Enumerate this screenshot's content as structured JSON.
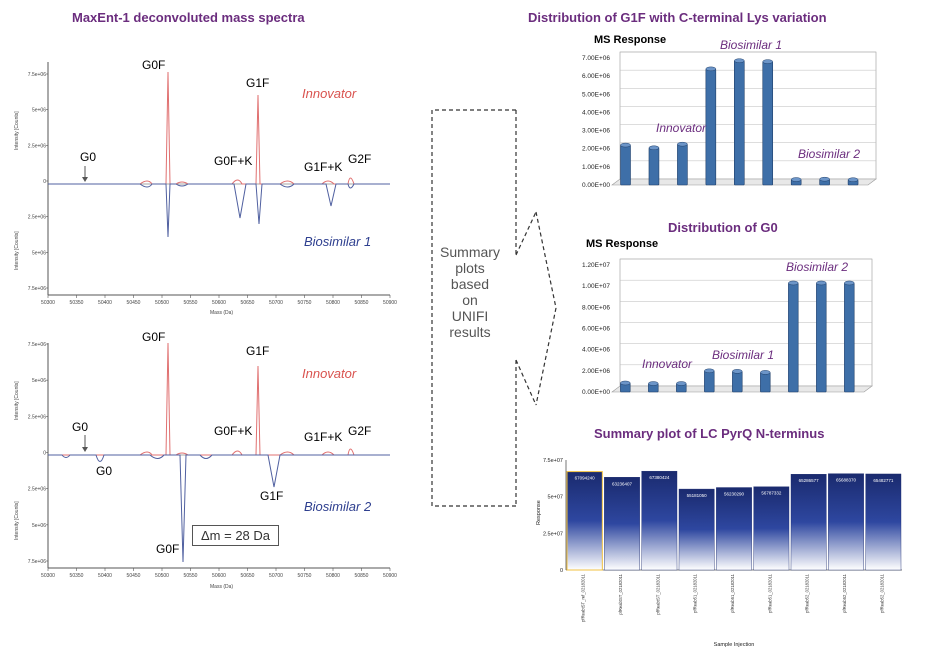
{
  "left": {
    "title": "MaxEnt-1 deconvoluted  mass spectra",
    "top_panel": {
      "upper_label": "Innovator",
      "lower_label": "Biosimilar 1",
      "peaks_upper": [
        "G0F",
        "G1F",
        "G0F+K",
        "G1F+K",
        "G2F"
      ],
      "g0_label": "G0",
      "yticks": [
        "7.5e+06",
        "5e+06",
        "2.5e+06",
        "0",
        "2.5e+06",
        "5e+06",
        "7.5e+06"
      ],
      "ylabel": "Intensity [Counts]",
      "xlabel": "Mass (Da)",
      "xticks": [
        "50300",
        "50350",
        "50400",
        "50450",
        "50500",
        "50550",
        "50600",
        "50650",
        "50700",
        "50750",
        "50800",
        "50850",
        "50900"
      ]
    },
    "bottom_panel": {
      "upper_label": "Innovator",
      "lower_label": "Biosimilar 2",
      "peaks_upper": [
        "G0F",
        "G1F",
        "G0F+K",
        "G1F+K",
        "G2F"
      ],
      "g0_upper": "G0",
      "g0_lower": "G0",
      "g1f_lower": "G1F",
      "g0f_lower": "G0F",
      "delta": "Δm = 28 Da",
      "yticks": [
        "7.5e+06",
        "5e+06",
        "2.5e+06",
        "0",
        "2.5e+06",
        "5e+06",
        "7.5e+06"
      ],
      "ylabel": "Intensity [Counts]",
      "xlabel": "Mass (Da)",
      "xticks": [
        "50300",
        "50350",
        "50400",
        "50450",
        "50500",
        "50550",
        "50600",
        "50650",
        "50700",
        "50750",
        "50800",
        "50850",
        "50900"
      ]
    }
  },
  "middle": {
    "summary": [
      "Summary",
      "plots",
      "based",
      "on",
      "UNIFI",
      "results"
    ]
  },
  "colors": {
    "title": "#6b2d7e",
    "innovator": "#e07070",
    "biosimilar": "#5060a0",
    "bar": "#3e6fa8"
  },
  "chart_data": [
    {
      "type": "bar",
      "title": "Distribution of G1F with C-terminal Lys variation",
      "ylabel": "MS Response",
      "yticks": [
        "0.00E+00",
        "1.00E+06",
        "2.00E+06",
        "3.00E+06",
        "4.00E+06",
        "5.00E+06",
        "6.00E+06",
        "7.00E+06"
      ],
      "ylim": [
        0,
        7000000
      ],
      "values": [
        2200000,
        2050000,
        2250000,
        6400000,
        6850000,
        6800000,
        300000,
        320000,
        290000
      ],
      "group_labels": [
        "Innovator",
        "Biosimilar 1",
        "Biosimilar 2"
      ]
    },
    {
      "type": "bar",
      "title": "Distribution of G0",
      "ylabel": "MS Response",
      "yticks": [
        "0.00E+00",
        "2.00E+06",
        "4.00E+06",
        "6.00E+06",
        "8.00E+06",
        "1.00E+07",
        "1.20E+07"
      ],
      "ylim": [
        0,
        12000000
      ],
      "values": [
        850000,
        800000,
        800000,
        2000000,
        1950000,
        1850000,
        10300000,
        10300000,
        10300000
      ],
      "group_labels": [
        "Innovator",
        "Biosimilar 1",
        "Biosimilar 2"
      ]
    },
    {
      "type": "bar",
      "title": "Summary plot of LC PyrQ N-terminus",
      "ylabel": "Response",
      "xlabel": "Sample Injection",
      "yticks": [
        "0",
        "2.5e+07",
        "5e+07",
        "7.5e+07"
      ],
      "ylim": [
        0,
        75000000
      ],
      "values": [
        67094240,
        63236407,
        67380424,
        55181050,
        56230290,
        56787332,
        65286577,
        65688370,
        65482771
      ],
      "data_labels": [
        "67094240",
        "63236407",
        "67380424",
        "55181050",
        "56230290",
        "56787332",
        "65286577",
        "65688370",
        "65482771"
      ],
      "categories": [
        "pfReabtST_ref_02182011",
        "pfReabtST_02182011",
        "pfReabtST_02182011",
        "pfReab51_02182011",
        "pfReab51_02182011",
        "pfReab51_02182011",
        "pfReab52_02182011",
        "pfReab52_02182011",
        "pfReab52_02182011"
      ]
    }
  ]
}
